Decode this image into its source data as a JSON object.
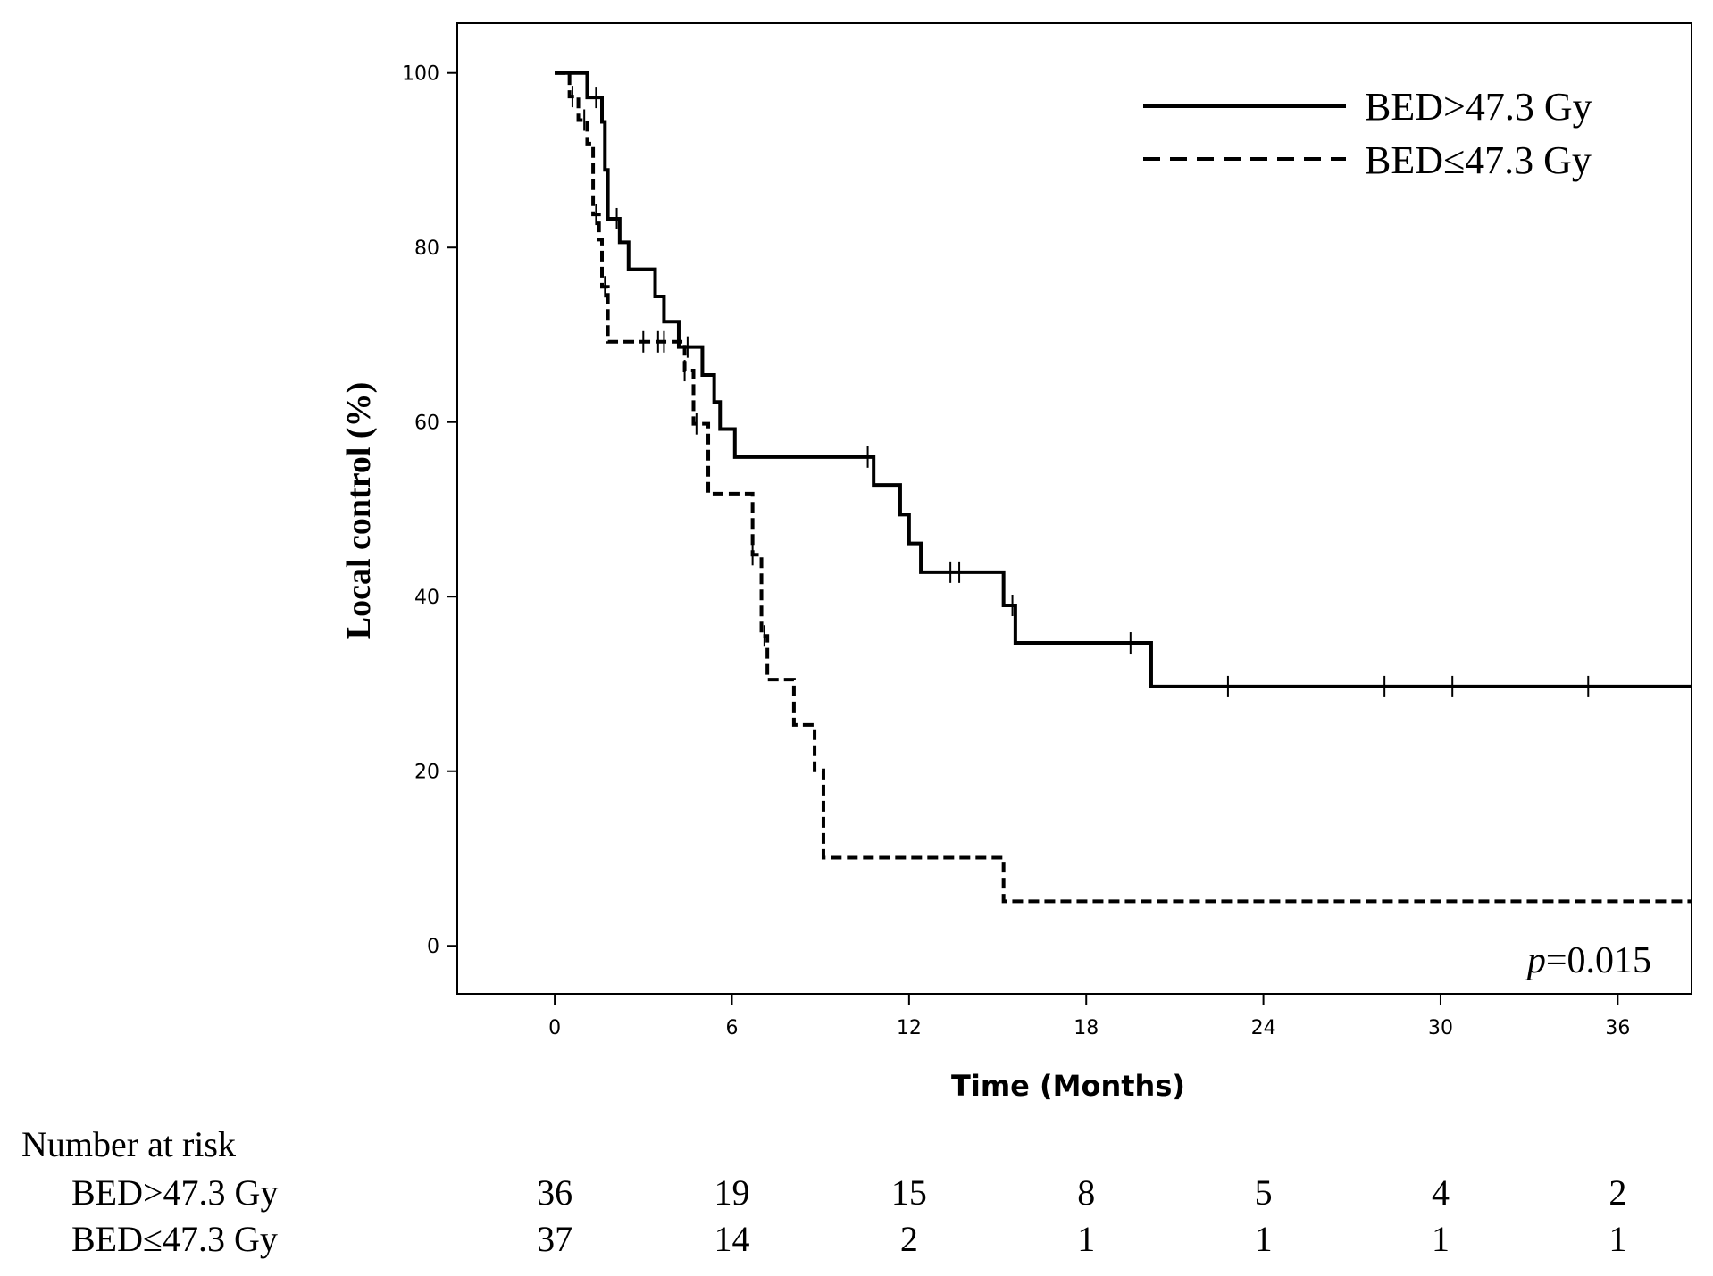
{
  "chart_data": {
    "type": "line",
    "subtype": "kaplan-meier",
    "title": "",
    "xlabel": "Time (Months)",
    "ylabel": "Local control (%)",
    "xlim": [
      -3.3,
      38.5
    ],
    "ylim": [
      -5.5,
      105.7
    ],
    "xticks": [
      0,
      6,
      12,
      18,
      24,
      30,
      36
    ],
    "yticks": [
      0,
      20,
      40,
      60,
      80,
      100
    ],
    "xtick_labels": [
      "0",
      "6",
      "12",
      "18",
      "24",
      "30",
      "36"
    ],
    "ytick_labels": [
      "0",
      "20",
      "40",
      "60",
      "80",
      "100"
    ],
    "legend_position": "top-right",
    "annotation": {
      "prefix": "p",
      "value": "=0.015"
    },
    "series": [
      {
        "name": "BED>47.3 Gy",
        "style": "solid",
        "steps": [
          [
            0,
            100
          ],
          [
            1.1,
            97.2
          ],
          [
            1.6,
            94.4
          ],
          [
            1.7,
            88.9
          ],
          [
            1.8,
            83.3
          ],
          [
            2.2,
            80.6
          ],
          [
            2.5,
            77.5
          ],
          [
            3.4,
            74.4
          ],
          [
            3.7,
            71.5
          ],
          [
            4.2,
            68.6
          ],
          [
            5.0,
            65.4
          ],
          [
            5.4,
            62.3
          ],
          [
            5.6,
            59.2
          ],
          [
            6.1,
            56.0
          ],
          [
            10.8,
            52.8
          ],
          [
            11.7,
            49.4
          ],
          [
            12.0,
            46.1
          ],
          [
            12.4,
            42.8
          ],
          [
            15.2,
            39.0
          ],
          [
            15.6,
            34.7
          ],
          [
            20.2,
            29.7
          ],
          [
            38.5,
            29.7
          ]
        ],
        "censor_times": [
          1.4,
          2.1,
          4.5,
          10.6,
          13.4,
          13.7,
          15.5,
          19.5,
          22.8,
          28.1,
          30.4,
          35.0
        ]
      },
      {
        "name": "BED≤47.3 Gy",
        "style": "dashed",
        "steps": [
          [
            0,
            100
          ],
          [
            0.5,
            97.3
          ],
          [
            0.8,
            94.6
          ],
          [
            1.1,
            91.9
          ],
          [
            1.3,
            83.8
          ],
          [
            1.5,
            80.9
          ],
          [
            1.6,
            75.5
          ],
          [
            1.8,
            69.2
          ],
          [
            4.4,
            65.9
          ],
          [
            4.7,
            59.8
          ],
          [
            5.2,
            51.8
          ],
          [
            6.7,
            44.8
          ],
          [
            7.0,
            35.5
          ],
          [
            7.2,
            30.5
          ],
          [
            8.1,
            25.3
          ],
          [
            8.8,
            20.1
          ],
          [
            9.1,
            10.1
          ],
          [
            15.2,
            5.1
          ],
          [
            38.5,
            5.1
          ]
        ],
        "censor_times": [
          0.6,
          1.0,
          1.4,
          1.7,
          3.0,
          3.5,
          3.7,
          4.4,
          4.8,
          6.7,
          7.1
        ]
      }
    ],
    "risk_table": {
      "header": "Number at risk",
      "timepoints": [
        0,
        6,
        12,
        18,
        24,
        30,
        36
      ],
      "rows": [
        {
          "label": "BED>47.3 Gy",
          "counts": [
            "36",
            "19",
            "15",
            "8",
            "5",
            "4",
            "2"
          ]
        },
        {
          "label": "BED≤47.3 Gy",
          "counts": [
            "37",
            "14",
            "2",
            "1",
            "1",
            "1",
            "1"
          ]
        }
      ]
    }
  }
}
